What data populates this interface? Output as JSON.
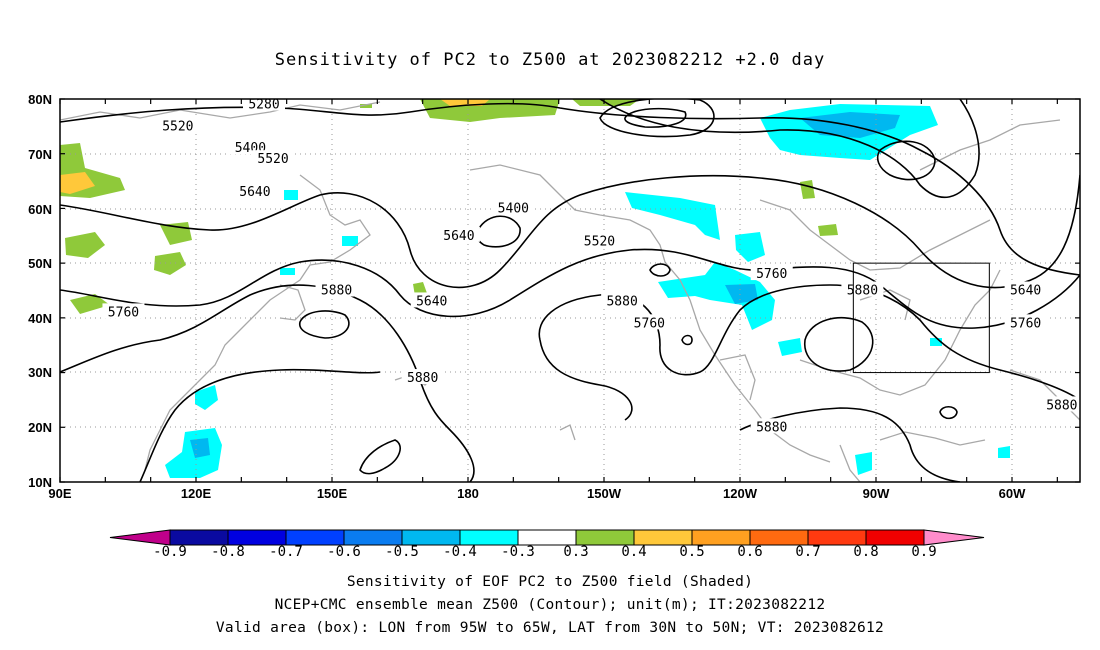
{
  "title": "Sensitivity of PC2 to Z500 at 2023082212 +2.0 day",
  "map": {
    "lat_labels": [
      "80N",
      "70N",
      "60N",
      "50N",
      "40N",
      "30N",
      "20N",
      "10N"
    ],
    "lon_labels": [
      "90E",
      "120E",
      "150E",
      "180",
      "150W",
      "120W",
      "90W",
      "60W"
    ],
    "lon_range": [
      90,
      315
    ],
    "lat_range": [
      10,
      80
    ],
    "contour_labels": [
      {
        "text": "5520",
        "lon": 116,
        "lat": 75
      },
      {
        "text": "5280",
        "lon": 135,
        "lat": 79
      },
      {
        "text": "5400",
        "lon": 132,
        "lat": 71
      },
      {
        "text": "5520",
        "lon": 137,
        "lat": 69
      },
      {
        "text": "5640",
        "lon": 133,
        "lat": 63
      },
      {
        "text": "5400",
        "lon": 190,
        "lat": 60
      },
      {
        "text": "5520",
        "lon": 209,
        "lat": 54
      },
      {
        "text": "5640",
        "lon": 178,
        "lat": 55
      },
      {
        "text": "5880",
        "lon": 151,
        "lat": 45
      },
      {
        "text": "5640",
        "lon": 172,
        "lat": 43
      },
      {
        "text": "5760",
        "lon": 247,
        "lat": 48
      },
      {
        "text": "5880",
        "lon": 267,
        "lat": 45
      },
      {
        "text": "5640",
        "lon": 303,
        "lat": 45
      },
      {
        "text": "5880",
        "lon": 214,
        "lat": 43
      },
      {
        "text": "5760",
        "lon": 104,
        "lat": 41
      },
      {
        "text": "5760",
        "lon": 220,
        "lat": 39
      },
      {
        "text": "5760",
        "lon": 303,
        "lat": 39
      },
      {
        "text": "5880",
        "lon": 170,
        "lat": 29
      },
      {
        "text": "5880",
        "lon": 311,
        "lat": 24
      },
      {
        "text": "5880",
        "lon": 247,
        "lat": 20
      }
    ],
    "valid_box": {
      "lon_west": 265,
      "lon_east": 295,
      "lat_south": 30,
      "lat_north": 50
    }
  },
  "colorbar": {
    "colors": [
      "#c0008a",
      "#0a0aa0",
      "#0000e0",
      "#0040ff",
      "#0a7cf0",
      "#00b8f0",
      "#00ffff",
      "#ffffff",
      "#8fc93a",
      "#ffc83a",
      "#ffa020",
      "#ff6a10",
      "#ff3a10",
      "#f00000",
      "#ff8ccb"
    ],
    "labels": [
      "-0.9",
      "-0.8",
      "-0.7",
      "-0.6",
      "-0.5",
      "-0.4",
      "-0.3",
      "0.3",
      "0.4",
      "0.5",
      "0.6",
      "0.7",
      "0.8",
      "0.9"
    ]
  },
  "captions": {
    "line1": "Sensitivity of EOF PC2 to Z500 field (Shaded)",
    "line2": "NCEP+CMC ensemble mean Z500 (Contour); unit(m); IT:2023082212",
    "line3": "Valid area (box): LON from 95W to 65W, LAT from 30N to 50N; VT: 2023082612"
  }
}
